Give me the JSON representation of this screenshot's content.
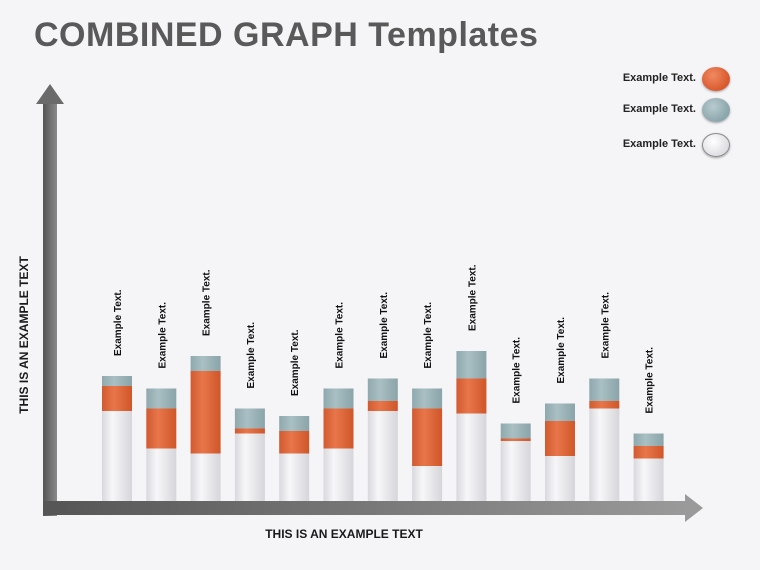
{
  "title": "COMBINED GRAPH Templates",
  "legend": [
    {
      "label": "Example Text.",
      "color": "#e0663c"
    },
    {
      "label": "Example Text.",
      "color": "#97b1b6"
    },
    {
      "label": "Example Text.",
      "color": "#ececee"
    }
  ],
  "chart_data": {
    "type": "bar",
    "stacked": true,
    "title": "COMBINED GRAPH Templates",
    "xlabel": "THIS IS AN EXAMPLE TEXT",
    "ylabel": "THIS IS AN EXAMPLE TEXT",
    "ylim": [
      0,
      100
    ],
    "grid": false,
    "legend_position": "top-right",
    "categories": [
      "",
      "",
      "",
      "",
      "",
      "",
      "",
      "",
      "",
      "",
      "",
      "",
      ""
    ],
    "data_labels": [
      "Example Text.",
      "Example Text.",
      "Example Text.",
      "Example Text.",
      "Example Text.",
      "Example Text.",
      "Example Text.",
      "Example Text.",
      "Example Text.",
      "Example Text.",
      "Example Text.",
      "Example Text.",
      "Example Text."
    ],
    "series": [
      {
        "color": "#ececee",
        "values": [
          36,
          21,
          19,
          27,
          19,
          21,
          36,
          14,
          35,
          24,
          18,
          37,
          17
        ]
      },
      {
        "color": "#e0663c",
        "values": [
          10,
          16,
          33,
          2,
          9,
          16,
          4,
          23,
          14,
          1,
          14,
          3,
          5
        ]
      },
      {
        "color": "#97b1b6",
        "values": [
          4,
          8,
          6,
          8,
          6,
          8,
          9,
          8,
          11,
          6,
          7,
          9,
          5
        ]
      }
    ]
  }
}
